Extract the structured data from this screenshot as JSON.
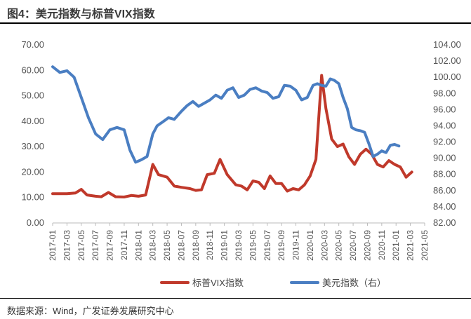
{
  "header": {
    "title": "图4：美元指数与标普VIX指数"
  },
  "footer": {
    "source": "数据来源：Wind，广发证券发展研究中心"
  },
  "colors": {
    "vix": "#c0392b",
    "usd": "#4a7ec2",
    "axis": "#999999",
    "text": "#555555"
  },
  "chart_data": {
    "type": "line",
    "title": "美元指数与标普VIX指数",
    "categories": [
      "2017-01",
      "2017-03",
      "2017-05",
      "2017-07",
      "2017-09",
      "2017-11",
      "2018-01",
      "2018-03",
      "2018-05",
      "2018-07",
      "2018-09",
      "2018-11",
      "2019-01",
      "2019-03",
      "2019-05",
      "2019-07",
      "2019-09",
      "2019-11",
      "2020-01",
      "2020-03",
      "2020-05",
      "2020-07",
      "2020-09",
      "2020-11",
      "2021-01",
      "2021-03",
      "2021-05"
    ],
    "x_start": "2017-01",
    "left_axis": {
      "min": 0,
      "max": 70,
      "step": 10,
      "ticks": [
        "0.00",
        "10.00",
        "20.00",
        "30.00",
        "40.00",
        "50.00",
        "60.00",
        "70.00"
      ]
    },
    "right_axis": {
      "min": 82,
      "max": 104,
      "step": 2,
      "ticks": [
        "82.00",
        "84.00",
        "86.00",
        "88.00",
        "90.00",
        "92.00",
        "94.00",
        "96.00",
        "98.00",
        "100.00",
        "102.00",
        "104.00"
      ]
    },
    "series": [
      {
        "name": "标普VIX指数",
        "axis": "left",
        "color": "#c0392b",
        "points": [
          [
            0,
            11.5
          ],
          [
            1,
            11.5
          ],
          [
            1.6,
            11.8
          ],
          [
            2,
            13.2
          ],
          [
            2.4,
            11
          ],
          [
            3,
            10.5
          ],
          [
            3.4,
            10.3
          ],
          [
            3.9,
            12
          ],
          [
            4.4,
            10.3
          ],
          [
            5,
            10.2
          ],
          [
            5.5,
            10.8
          ],
          [
            6,
            10.5
          ],
          [
            6.5,
            11
          ],
          [
            7,
            23
          ],
          [
            7.4,
            19
          ],
          [
            8,
            18
          ],
          [
            8.5,
            14.5
          ],
          [
            9,
            14
          ],
          [
            9.6,
            13.5
          ],
          [
            10,
            12.8
          ],
          [
            10.4,
            13
          ],
          [
            10.8,
            19
          ],
          [
            11.3,
            19.5
          ],
          [
            11.7,
            25
          ],
          [
            12.2,
            19
          ],
          [
            12.8,
            15
          ],
          [
            13.2,
            14.5
          ],
          [
            13.6,
            13
          ],
          [
            14,
            16.5
          ],
          [
            14.4,
            16
          ],
          [
            14.8,
            13.5
          ],
          [
            15.2,
            18.5
          ],
          [
            15.6,
            15.5
          ],
          [
            16,
            15.5
          ],
          [
            16.4,
            12.5
          ],
          [
            16.8,
            13.5
          ],
          [
            17.2,
            13
          ],
          [
            17.6,
            15
          ],
          [
            18,
            18.5
          ],
          [
            18.4,
            25
          ],
          [
            18.8,
            58
          ],
          [
            19.1,
            45
          ],
          [
            19.5,
            33
          ],
          [
            19.9,
            30
          ],
          [
            20.3,
            31
          ],
          [
            20.7,
            26
          ],
          [
            21.1,
            23
          ],
          [
            21.5,
            27
          ],
          [
            21.9,
            29
          ],
          [
            22.3,
            27
          ],
          [
            22.7,
            23
          ],
          [
            23.1,
            22
          ],
          [
            23.5,
            24.5
          ],
          [
            23.9,
            23
          ],
          [
            24.3,
            22
          ],
          [
            24.7,
            18
          ],
          [
            25.1,
            20
          ]
        ]
      },
      {
        "name": "美元指数（右）",
        "axis": "right",
        "color": "#4a7ec2",
        "points": [
          [
            0,
            101.3
          ],
          [
            0.5,
            100.6
          ],
          [
            1,
            100.8
          ],
          [
            1.5,
            100
          ],
          [
            2,
            97.5
          ],
          [
            2.5,
            95
          ],
          [
            3,
            93
          ],
          [
            3.5,
            92.3
          ],
          [
            4,
            93.5
          ],
          [
            4.5,
            93.8
          ],
          [
            5,
            93.5
          ],
          [
            5.4,
            91
          ],
          [
            5.8,
            89.5
          ],
          [
            6.2,
            89.8
          ],
          [
            6.6,
            90.2
          ],
          [
            7,
            93
          ],
          [
            7.3,
            94
          ],
          [
            7.7,
            94.5
          ],
          [
            8.1,
            95
          ],
          [
            8.5,
            94.8
          ],
          [
            9,
            95.8
          ],
          [
            9.4,
            96.5
          ],
          [
            9.8,
            97
          ],
          [
            10.2,
            96.4
          ],
          [
            10.6,
            96.8
          ],
          [
            11,
            97.2
          ],
          [
            11.4,
            97.8
          ],
          [
            11.8,
            97.4
          ],
          [
            12.2,
            98.4
          ],
          [
            12.6,
            98.7
          ],
          [
            13,
            97.5
          ],
          [
            13.4,
            97.8
          ],
          [
            13.8,
            98.5
          ],
          [
            14.2,
            98.7
          ],
          [
            14.6,
            98.3
          ],
          [
            15,
            98.1
          ],
          [
            15.4,
            97.4
          ],
          [
            15.8,
            97.6
          ],
          [
            16.2,
            99
          ],
          [
            16.6,
            98.9
          ],
          [
            17,
            98.4
          ],
          [
            17.4,
            97.2
          ],
          [
            17.8,
            97.5
          ],
          [
            18.2,
            99
          ],
          [
            18.5,
            99.2
          ],
          [
            18.8,
            99
          ],
          [
            19.1,
            98.9
          ],
          [
            19.4,
            99.8
          ],
          [
            19.7,
            99.6
          ],
          [
            20,
            99.2
          ],
          [
            20.3,
            97.5
          ],
          [
            20.6,
            96.1
          ],
          [
            20.9,
            93.8
          ],
          [
            21.2,
            93.5
          ],
          [
            21.5,
            93.4
          ],
          [
            21.8,
            93.2
          ],
          [
            22.1,
            91.8
          ],
          [
            22.4,
            90.2
          ],
          [
            22.7,
            90.5
          ],
          [
            23,
            90.9
          ],
          [
            23.3,
            90.7
          ],
          [
            23.6,
            91.6
          ],
          [
            23.9,
            91.7
          ],
          [
            24.2,
            91.5
          ]
        ]
      }
    ],
    "legend": "bottom"
  }
}
